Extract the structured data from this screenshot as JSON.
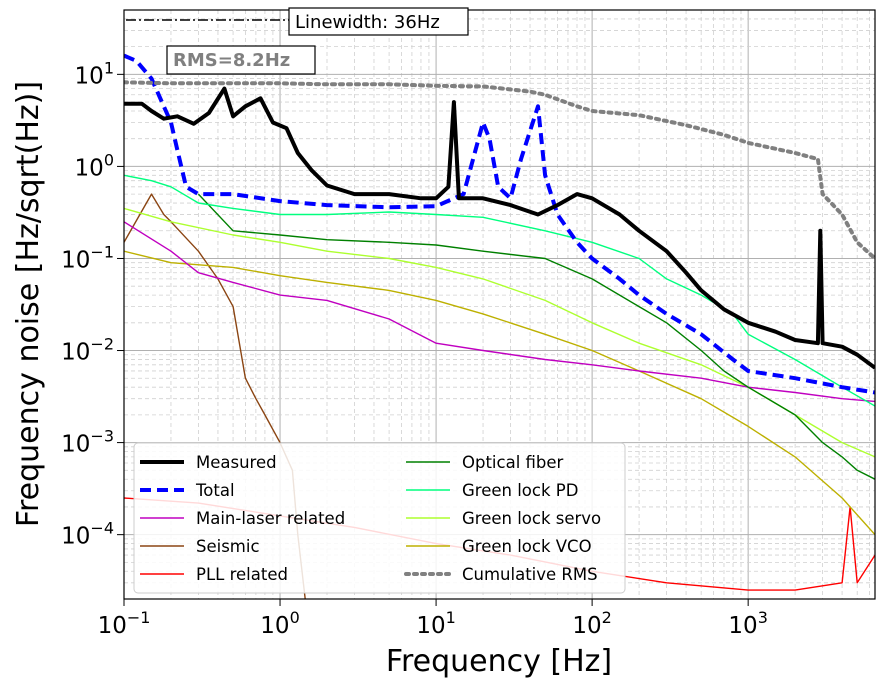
{
  "chart_data": {
    "type": "line",
    "xlabel": "Frequency [Hz]",
    "ylabel": "Frequency noise [Hz/sqrt(Hz)]",
    "xscale": "log",
    "yscale": "log",
    "xlim": [
      0.1,
      6500
    ],
    "ylim": [
      2e-05,
      50
    ],
    "grid": true,
    "legend_location": "bottom-left",
    "x_tick_labels": [
      {
        "base": "10",
        "exp": "−1"
      },
      {
        "base": "10",
        "exp": "0"
      },
      {
        "base": "10",
        "exp": "1"
      },
      {
        "base": "10",
        "exp": "2"
      },
      {
        "base": "10",
        "exp": "3"
      }
    ],
    "y_tick_labels": [
      {
        "base": "10",
        "exp": "1"
      },
      {
        "base": "10",
        "exp": "0"
      },
      {
        "base": "10",
        "exp": "−1"
      },
      {
        "base": "10",
        "exp": "−2"
      },
      {
        "base": "10",
        "exp": "−3"
      },
      {
        "base": "10",
        "exp": "−4"
      }
    ],
    "annotations": {
      "linewidth": "Linewidth: 36Hz",
      "rms": "RMS=8.2Hz"
    },
    "series": [
      {
        "name": "Measured",
        "color": "#000000",
        "style": "solid-thick",
        "points": [
          [
            0.1,
            4.8
          ],
          [
            0.13,
            4.8
          ],
          [
            0.15,
            4.0
          ],
          [
            0.18,
            3.3
          ],
          [
            0.22,
            3.5
          ],
          [
            0.28,
            2.9
          ],
          [
            0.35,
            3.8
          ],
          [
            0.44,
            7.0
          ],
          [
            0.5,
            3.5
          ],
          [
            0.6,
            4.5
          ],
          [
            0.75,
            5.5
          ],
          [
            0.9,
            3.0
          ],
          [
            1.1,
            2.6
          ],
          [
            1.3,
            1.4
          ],
          [
            1.6,
            0.9
          ],
          [
            2,
            0.62
          ],
          [
            3,
            0.5
          ],
          [
            5,
            0.5
          ],
          [
            8,
            0.45
          ],
          [
            10,
            0.45
          ],
          [
            12,
            0.6
          ],
          [
            13,
            5.0
          ],
          [
            14,
            0.45
          ],
          [
            20,
            0.45
          ],
          [
            30,
            0.38
          ],
          [
            45,
            0.3
          ],
          [
            60,
            0.38
          ],
          [
            80,
            0.5
          ],
          [
            100,
            0.45
          ],
          [
            150,
            0.3
          ],
          [
            200,
            0.2
          ],
          [
            300,
            0.12
          ],
          [
            400,
            0.07
          ],
          [
            500,
            0.045
          ],
          [
            700,
            0.028
          ],
          [
            1000,
            0.02
          ],
          [
            1500,
            0.016
          ],
          [
            2000,
            0.013
          ],
          [
            2800,
            0.012
          ],
          [
            2900,
            0.2
          ],
          [
            3000,
            0.012
          ],
          [
            4000,
            0.011
          ],
          [
            5000,
            0.009
          ],
          [
            6500,
            0.0065
          ]
        ]
      },
      {
        "name": "Total",
        "color": "#0000ff",
        "style": "dashed-thick",
        "points": [
          [
            0.1,
            16
          ],
          [
            0.12,
            14
          ],
          [
            0.15,
            9
          ],
          [
            0.18,
            4.5
          ],
          [
            0.2,
            3.0
          ],
          [
            0.22,
            1.5
          ],
          [
            0.25,
            0.6
          ],
          [
            0.3,
            0.5
          ],
          [
            0.5,
            0.5
          ],
          [
            1,
            0.42
          ],
          [
            2,
            0.38
          ],
          [
            5,
            0.36
          ],
          [
            10,
            0.37
          ],
          [
            15,
            0.5
          ],
          [
            20,
            3.0
          ],
          [
            22,
            2.0
          ],
          [
            25,
            0.6
          ],
          [
            30,
            0.45
          ],
          [
            35,
            1.2
          ],
          [
            45,
            4.5
          ],
          [
            50,
            0.8
          ],
          [
            60,
            0.3
          ],
          [
            80,
            0.15
          ],
          [
            100,
            0.1
          ],
          [
            150,
            0.06
          ],
          [
            200,
            0.04
          ],
          [
            300,
            0.025
          ],
          [
            500,
            0.015
          ],
          [
            800,
            0.008
          ],
          [
            1000,
            0.006
          ],
          [
            2000,
            0.005
          ],
          [
            4000,
            0.004
          ],
          [
            6500,
            0.0035
          ]
        ]
      },
      {
        "name": "Main-laser related",
        "color": "#c000c0",
        "style": "solid-thin",
        "points": [
          [
            0.1,
            0.25
          ],
          [
            0.2,
            0.12
          ],
          [
            0.3,
            0.07
          ],
          [
            0.5,
            0.055
          ],
          [
            1,
            0.04
          ],
          [
            2,
            0.035
          ],
          [
            5,
            0.022
          ],
          [
            10,
            0.012
          ],
          [
            20,
            0.01
          ],
          [
            50,
            0.008
          ],
          [
            100,
            0.007
          ],
          [
            200,
            0.006
          ],
          [
            500,
            0.005
          ],
          [
            1000,
            0.004
          ],
          [
            2000,
            0.0035
          ],
          [
            4000,
            0.003
          ],
          [
            6500,
            0.0028
          ]
        ]
      },
      {
        "name": "Seismic",
        "color": "#8b4513",
        "style": "solid-thin",
        "points": [
          [
            0.1,
            0.15
          ],
          [
            0.15,
            0.5
          ],
          [
            0.18,
            0.3
          ],
          [
            0.2,
            0.25
          ],
          [
            0.3,
            0.12
          ],
          [
            0.4,
            0.06
          ],
          [
            0.5,
            0.03
          ],
          [
            0.6,
            0.005
          ],
          [
            0.7,
            0.003
          ],
          [
            0.8,
            0.002
          ],
          [
            1,
            0.001
          ],
          [
            1.2,
            0.0005
          ],
          [
            1.3,
            0.0001
          ],
          [
            1.45,
            2e-05
          ]
        ]
      },
      {
        "name": "PLL related",
        "color": "#ff0000",
        "style": "solid-thin",
        "points": [
          [
            0.1,
            0.00025
          ],
          [
            0.3,
            0.00022
          ],
          [
            1,
            0.00016
          ],
          [
            3,
            0.00012
          ],
          [
            10,
            8e-05
          ],
          [
            30,
            6e-05
          ],
          [
            100,
            4e-05
          ],
          [
            300,
            3e-05
          ],
          [
            1000,
            2.5e-05
          ],
          [
            2000,
            2.5e-05
          ],
          [
            4000,
            3e-05
          ],
          [
            4500,
            0.0002
          ],
          [
            5000,
            3e-05
          ],
          [
            6500,
            6e-05
          ]
        ]
      },
      {
        "name": "Optical fiber",
        "color": "#008000",
        "style": "solid-thin",
        "points": [
          [
            0.3,
            0.5
          ],
          [
            0.5,
            0.2
          ],
          [
            1,
            0.18
          ],
          [
            2,
            0.16
          ],
          [
            5,
            0.15
          ],
          [
            10,
            0.14
          ],
          [
            20,
            0.12
          ],
          [
            50,
            0.1
          ],
          [
            100,
            0.06
          ],
          [
            200,
            0.03
          ],
          [
            300,
            0.02
          ],
          [
            500,
            0.01
          ],
          [
            700,
            0.006
          ],
          [
            1000,
            0.004
          ],
          [
            2000,
            0.002
          ],
          [
            3000,
            0.001
          ],
          [
            4000,
            0.0007
          ],
          [
            5000,
            0.0005
          ],
          [
            6500,
            0.0004
          ]
        ]
      },
      {
        "name": "Green lock PD",
        "color": "#00ff7f",
        "style": "solid-thin",
        "points": [
          [
            0.1,
            0.8
          ],
          [
            0.15,
            0.7
          ],
          [
            0.2,
            0.6
          ],
          [
            0.3,
            0.4
          ],
          [
            0.5,
            0.35
          ],
          [
            1,
            0.3
          ],
          [
            2,
            0.3
          ],
          [
            5,
            0.32
          ],
          [
            10,
            0.3
          ],
          [
            20,
            0.28
          ],
          [
            50,
            0.2
          ],
          [
            100,
            0.15
          ],
          [
            200,
            0.1
          ],
          [
            300,
            0.06
          ],
          [
            500,
            0.04
          ],
          [
            800,
            0.025
          ],
          [
            1000,
            0.015
          ],
          [
            2000,
            0.008
          ],
          [
            4000,
            0.004
          ],
          [
            6500,
            0.0025
          ]
        ]
      },
      {
        "name": "Green lock servo",
        "color": "#adff2f",
        "style": "solid-thin",
        "points": [
          [
            0.1,
            0.35
          ],
          [
            0.2,
            0.25
          ],
          [
            0.5,
            0.18
          ],
          [
            1,
            0.15
          ],
          [
            2,
            0.12
          ],
          [
            5,
            0.1
          ],
          [
            10,
            0.08
          ],
          [
            20,
            0.06
          ],
          [
            50,
            0.035
          ],
          [
            100,
            0.02
          ],
          [
            200,
            0.012
          ],
          [
            500,
            0.007
          ],
          [
            1000,
            0.004
          ],
          [
            2000,
            0.002
          ],
          [
            4000,
            0.001
          ],
          [
            6500,
            0.0007
          ]
        ]
      },
      {
        "name": "Green lock VCO",
        "color": "#bdb000",
        "style": "solid-thin",
        "points": [
          [
            0.1,
            0.12
          ],
          [
            0.2,
            0.09
          ],
          [
            0.5,
            0.08
          ],
          [
            1,
            0.065
          ],
          [
            2,
            0.055
          ],
          [
            5,
            0.045
          ],
          [
            10,
            0.035
          ],
          [
            20,
            0.025
          ],
          [
            50,
            0.015
          ],
          [
            100,
            0.01
          ],
          [
            200,
            0.006
          ],
          [
            500,
            0.003
          ],
          [
            1000,
            0.0015
          ],
          [
            2000,
            0.0007
          ],
          [
            4000,
            0.00025
          ],
          [
            6500,
            0.0001
          ]
        ]
      },
      {
        "name": "Cumulative RMS",
        "color": "#808080",
        "style": "dotted-thick",
        "points": [
          [
            0.1,
            8.2
          ],
          [
            0.2,
            8.0
          ],
          [
            0.5,
            8.0
          ],
          [
            1,
            8.0
          ],
          [
            2,
            7.8
          ],
          [
            5,
            7.8
          ],
          [
            10,
            7.5
          ],
          [
            20,
            7.4
          ],
          [
            40,
            6.5
          ],
          [
            50,
            6.0
          ],
          [
            80,
            4.5
          ],
          [
            100,
            4.0
          ],
          [
            200,
            3.6
          ],
          [
            400,
            2.8
          ],
          [
            700,
            2.2
          ],
          [
            1000,
            1.8
          ],
          [
            2000,
            1.4
          ],
          [
            2800,
            1.2
          ],
          [
            3000,
            0.5
          ],
          [
            4000,
            0.3
          ],
          [
            5000,
            0.15
          ],
          [
            6500,
            0.1
          ]
        ]
      }
    ]
  }
}
